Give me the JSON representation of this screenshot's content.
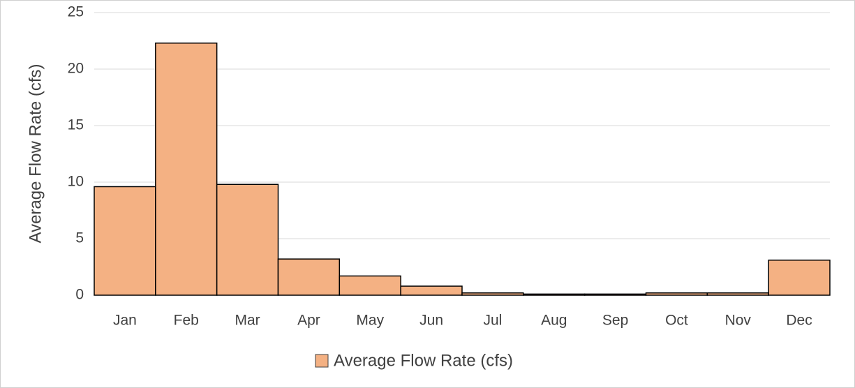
{
  "chart_data": {
    "type": "bar",
    "ylabel": "Average Flow Rate (cfs)",
    "categories": [
      "Jan",
      "Feb",
      "Mar",
      "Apr",
      "May",
      "Jun",
      "Jul",
      "Aug",
      "Sep",
      "Oct",
      "Nov",
      "Dec"
    ],
    "series": [
      {
        "name": "Average Flow Rate (cfs)",
        "color": "#f4b183",
        "values": [
          9.6,
          22.3,
          9.8,
          3.2,
          1.7,
          0.8,
          0.2,
          0.1,
          0.1,
          0.2,
          0.2,
          3.1
        ]
      }
    ],
    "ylim": [
      0,
      25
    ],
    "yticks": [
      0,
      5,
      10,
      15,
      20,
      25
    ],
    "grid": true,
    "legend": "bottom"
  }
}
